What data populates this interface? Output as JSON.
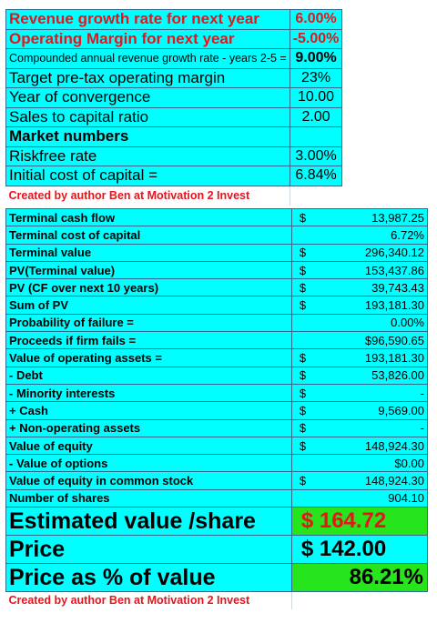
{
  "inputs": [
    {
      "label": "Revenue growth rate for next year",
      "value": "6.00%",
      "style": "red"
    },
    {
      "label": "Operating Margin for next year",
      "value": "-5.00%",
      "style": "red"
    },
    {
      "label": "Compounded annual revenue growth rate - years 2-5 =",
      "value": "9.00%",
      "style": "small"
    },
    {
      "label": "Target pre-tax operating margin",
      "value": "23%",
      "style": "normal"
    },
    {
      "label": "Year of convergence",
      "value": "10.00",
      "style": "normal"
    },
    {
      "label": "Sales to capital ratio",
      "value": "2.00",
      "style": "normal"
    },
    {
      "label": "Market numbers",
      "value": "",
      "style": "bold"
    },
    {
      "label": "Riskfree rate",
      "value": "3.00%",
      "style": "normal"
    },
    {
      "label": "Initial cost of capital =",
      "value": "6.84%",
      "style": "normal"
    }
  ],
  "credit_top": "Created by author Ben at Motivation 2 Invest",
  "results": [
    {
      "label": "Terminal cash flow",
      "currency": "$",
      "value": "13,987.25"
    },
    {
      "label": "Terminal cost of capital",
      "currency": "",
      "value": "6.72%"
    },
    {
      "label": "Terminal value",
      "currency": "$",
      "value": "296,340.12"
    },
    {
      "label": "PV(Terminal value)",
      "currency": "$",
      "value": "153,437.86"
    },
    {
      "label": "PV (CF over next 10 years)",
      "currency": "$",
      "value": "39,743.43"
    },
    {
      "label": "Sum of PV",
      "currency": "$",
      "value": "193,181.30"
    },
    {
      "label": "Probability of failure =",
      "currency": "",
      "value": "0.00%"
    },
    {
      "label": "Proceeds if firm fails =",
      "currency": "",
      "value": "$96,590.65"
    },
    {
      "label": "Value of operating assets =",
      "currency": "$",
      "value": "193,181.30"
    },
    {
      "label": " - Debt",
      "currency": "$",
      "value": "53,826.00"
    },
    {
      "label": " - Minority interests",
      "currency": "$",
      "value": "-"
    },
    {
      "label": " +  Cash",
      "currency": "$",
      "value": "9,569.00"
    },
    {
      "label": " + Non-operating assets",
      "currency": "$",
      "value": "-"
    },
    {
      "label": "Value of equity",
      "currency": "$",
      "value": "148,924.30"
    },
    {
      "label": " - Value of options",
      "currency": "",
      "value": "$0.00"
    },
    {
      "label": "Value of equity in common stock",
      "currency": "$",
      "value": "148,924.30"
    },
    {
      "label": "Number of shares",
      "currency": "",
      "value": "904.10"
    }
  ],
  "headline": {
    "estimated_label": "Estimated value /share",
    "estimated_value": "$  164.72",
    "price_label": "Price",
    "price_value": "$  142.00",
    "pct_label": "Price as % of value",
    "pct_value": "86.21%"
  },
  "credit_bottom": "Created by author Ben at Motivation 2 Invest",
  "colors": {
    "cyan": "#00ffff",
    "green": "#27e51d",
    "red": "#e8131b"
  }
}
